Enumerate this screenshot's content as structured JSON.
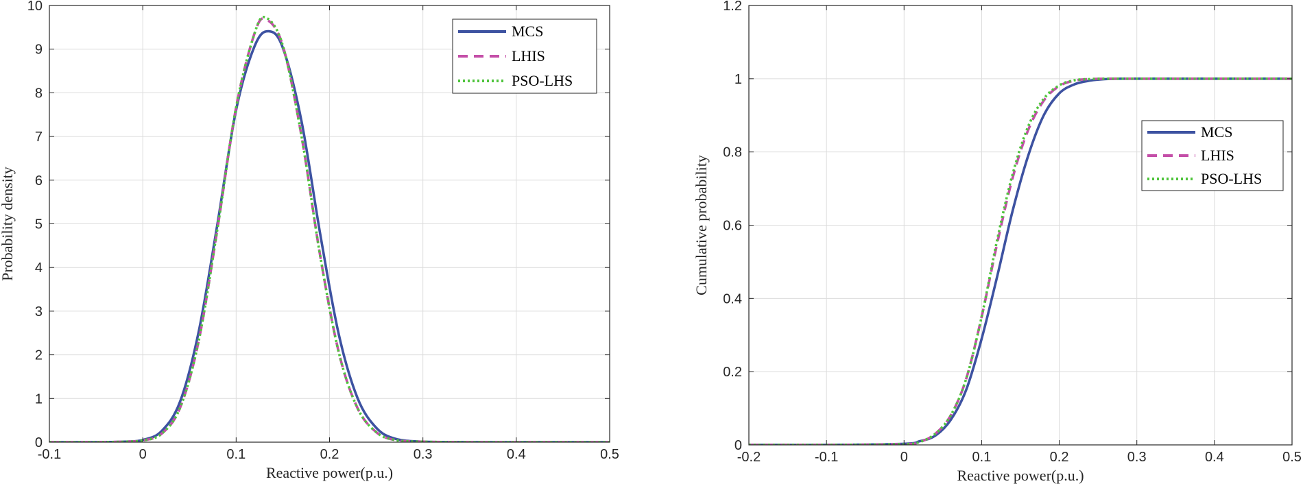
{
  "chart_data": [
    {
      "type": "line",
      "title": "",
      "xlabel": "Reactive power(p.u.)",
      "ylabel": "Probability density",
      "xlim": [
        -0.1,
        0.5
      ],
      "ylim": [
        0,
        10
      ],
      "xticks": [
        -0.1,
        0,
        0.1,
        0.2,
        0.3,
        0.4,
        0.5
      ],
      "xtick_labels": [
        "-0.1",
        "0",
        "0.1",
        "0.2",
        "0.3",
        "0.4",
        "0.5"
      ],
      "yticks": [
        0,
        1,
        2,
        3,
        4,
        5,
        6,
        7,
        8,
        9,
        10
      ],
      "ytick_labels": [
        "0",
        "1",
        "2",
        "3",
        "4",
        "5",
        "6",
        "7",
        "8",
        "9",
        "10"
      ],
      "grid": true,
      "legend_position": "top-right",
      "series": [
        {
          "name": "MCS",
          "color": "#3d52a1",
          "style": "solid",
          "x": [
            -0.1,
            -0.05,
            -0.02,
            0,
            0.02,
            0.04,
            0.06,
            0.08,
            0.1,
            0.12,
            0.135,
            0.15,
            0.17,
            0.19,
            0.21,
            0.23,
            0.25,
            0.27,
            0.3,
            0.35,
            0.4,
            0.5
          ],
          "y": [
            0,
            0,
            0.01,
            0.05,
            0.25,
            0.93,
            2.54,
            5.0,
            7.61,
            9.08,
            9.41,
            9.03,
            7.35,
            4.77,
            2.46,
            1.01,
            0.33,
            0.08,
            0.01,
            0,
            0,
            0
          ]
        },
        {
          "name": "LHIS",
          "color": "#c44ea8",
          "style": "dashed",
          "x": [
            -0.1,
            -0.05,
            -0.02,
            0,
            0.02,
            0.04,
            0.06,
            0.08,
            0.1,
            0.12,
            0.132,
            0.15,
            0.17,
            0.19,
            0.21,
            0.23,
            0.25,
            0.27,
            0.3,
            0.35,
            0.4,
            0.5
          ],
          "y": [
            0,
            0,
            0.01,
            0.04,
            0.19,
            0.79,
            2.33,
            4.89,
            7.67,
            9.38,
            9.68,
            9.08,
            7.01,
            4.27,
            2.05,
            0.78,
            0.23,
            0.05,
            0.01,
            0,
            0,
            0
          ]
        },
        {
          "name": "PSO-LHS",
          "color": "#4fc43c",
          "style": "dotted",
          "x": [
            -0.1,
            -0.05,
            -0.02,
            0,
            0.02,
            0.04,
            0.06,
            0.08,
            0.1,
            0.12,
            0.132,
            0.15,
            0.17,
            0.19,
            0.21,
            0.23,
            0.25,
            0.27,
            0.3,
            0.35,
            0.4,
            0.5
          ],
          "y": [
            0,
            0,
            0.01,
            0.04,
            0.19,
            0.79,
            2.33,
            4.89,
            7.67,
            9.38,
            9.72,
            9.08,
            7.01,
            4.27,
            2.05,
            0.78,
            0.23,
            0.05,
            0.01,
            0,
            0,
            0
          ]
        }
      ]
    },
    {
      "type": "line",
      "title": "",
      "xlabel": "Reactive power(p.u.)",
      "ylabel": "Cumulative probability",
      "xlim": [
        -0.2,
        0.5
      ],
      "ylim": [
        0,
        1.2
      ],
      "xticks": [
        -0.2,
        -0.1,
        0,
        0.1,
        0.2,
        0.3,
        0.4,
        0.5
      ],
      "xtick_labels": [
        "-0.2",
        "-0.1",
        "0",
        "0.1",
        "0.2",
        "0.3",
        "0.4",
        "0.5"
      ],
      "yticks": [
        0,
        0.2,
        0.4,
        0.6,
        0.8,
        1,
        1.2
      ],
      "ytick_labels": [
        "0",
        "0.2",
        "0.4",
        "0.6",
        "0.8",
        "1",
        "1.2"
      ],
      "grid": true,
      "legend_position": "center-right",
      "series": [
        {
          "name": "MCS",
          "color": "#3d52a1",
          "style": "solid",
          "x": [
            -0.2,
            -0.1,
            0,
            0.02,
            0.04,
            0.06,
            0.08,
            0.1,
            0.12,
            0.14,
            0.16,
            0.18,
            0.2,
            0.22,
            0.24,
            0.26,
            0.28,
            0.3,
            0.4,
            0.5
          ],
          "y": [
            0,
            0,
            0.003,
            0.01,
            0.025,
            0.068,
            0.15,
            0.29,
            0.46,
            0.64,
            0.79,
            0.9,
            0.96,
            0.985,
            0.995,
            0.999,
            1,
            1,
            1,
            1
          ]
        },
        {
          "name": "LHIS",
          "color": "#c44ea8",
          "style": "dashed",
          "x": [
            -0.2,
            -0.1,
            0,
            0.02,
            0.04,
            0.06,
            0.08,
            0.1,
            0.12,
            0.14,
            0.16,
            0.18,
            0.2,
            0.22,
            0.24,
            0.26,
            0.28,
            0.3,
            0.4,
            0.5
          ],
          "y": [
            0,
            0,
            0.002,
            0.008,
            0.03,
            0.08,
            0.18,
            0.35,
            0.55,
            0.73,
            0.86,
            0.94,
            0.98,
            0.995,
            0.999,
            1,
            1,
            1,
            1,
            1
          ]
        },
        {
          "name": "PSO-LHS",
          "color": "#4fc43c",
          "style": "dotted",
          "x": [
            -0.2,
            -0.1,
            0,
            0.02,
            0.04,
            0.06,
            0.08,
            0.1,
            0.12,
            0.14,
            0.16,
            0.18,
            0.2,
            0.22,
            0.24,
            0.26,
            0.28,
            0.3,
            0.4,
            0.5
          ],
          "y": [
            0,
            0,
            0.002,
            0.008,
            0.03,
            0.08,
            0.18,
            0.35,
            0.56,
            0.74,
            0.87,
            0.945,
            0.982,
            0.996,
            0.999,
            1,
            1,
            1,
            1,
            1
          ]
        }
      ]
    }
  ]
}
